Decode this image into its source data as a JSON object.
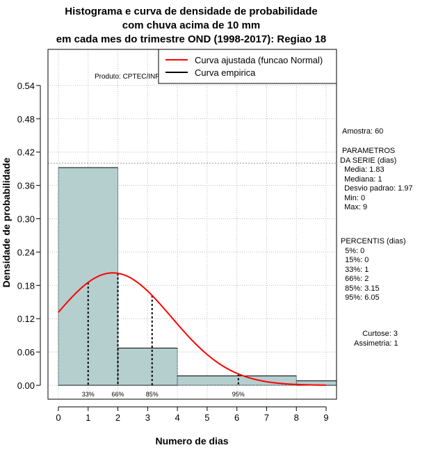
{
  "chart_data": {
    "type": "bar",
    "title": [
      "Histograma e curva de densidade de probabilidade",
      "com chuva acima de 10 mm",
      "em cada mes do trimestre OND (1998-2017): Regiao 18"
    ],
    "xlabel": "Numero de dias",
    "ylabel": "Densidade de probabilidade",
    "credit": "Produto: CPTEC/INPE",
    "xlim": [
      -0.35,
      9.35
    ],
    "ylim": [
      -0.025,
      0.605
    ],
    "x_ticks": [
      "0",
      "1",
      "2",
      "3",
      "4",
      "5",
      "6",
      "7",
      "8",
      "9"
    ],
    "y_ticks": [
      "0.00",
      "0.06",
      "0.12",
      "0.18",
      "0.24",
      "0.30",
      "0.36",
      "0.42",
      "0.48",
      "0.54"
    ],
    "bins": [
      {
        "x0": 0,
        "x1": 2,
        "density": 0.392
      },
      {
        "x0": 2,
        "x1": 4,
        "density": 0.067
      },
      {
        "x0": 4,
        "x1": 8,
        "density": 0.017
      },
      {
        "x0": 8,
        "x1": 9.35,
        "density": 0.008
      }
    ],
    "empirical_line_y": 0.4,
    "normal_fit": {
      "mean": 1.83,
      "sd": 1.97,
      "x_from": 0,
      "x_to": 9
    },
    "percentile_markers": [
      {
        "x": 1,
        "label": "33%"
      },
      {
        "x": 2,
        "label": "66%"
      },
      {
        "x": 3.15,
        "label": "85%"
      },
      {
        "x": 6.05,
        "label": "95%"
      }
    ],
    "legend": [
      {
        "label": "Curva ajustada (funcao Normal)",
        "color": "#ff0000"
      },
      {
        "label": "Curva empirica",
        "color": "#000000"
      }
    ],
    "colors": {
      "bar_fill": "#b5cfcf",
      "fit_line": "#ff0000",
      "grid": "#bbbbbb"
    }
  },
  "side": {
    "amostra": "Amostra: 60",
    "params": " PARAMETROS\nDA SERIE (dias)\n  Media: 1.83\n  Mediana: 1\n  Desvio padrao: 1.97\n  Min: 0\n  Max: 9",
    "percentis": "PERCENTIS (dias)\n  5%: 0\n  15%: 0\n  33%: 1\n  66%: 2\n  85%: 3.15\n  95%: 6.05",
    "stats": "    Curtose: 3\nAssimetria: 1"
  }
}
